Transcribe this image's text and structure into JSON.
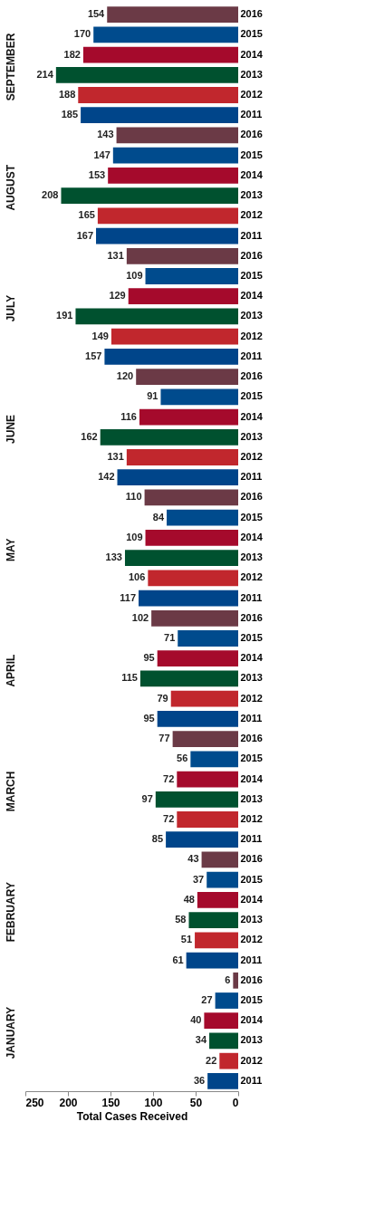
{
  "chart_data": {
    "type": "bar",
    "orientation": "horizontal",
    "xlabel": "Total Cases Received",
    "categories": [
      "2016",
      "2015",
      "2014",
      "2013",
      "2012",
      "2011",
      "2016",
      "2015",
      "2014",
      "2013",
      "2012",
      "2011",
      "2016",
      "2015",
      "2014",
      "2013",
      "2012",
      "2011",
      "2016",
      "2015",
      "2014",
      "2013",
      "2012",
      "2011",
      "2016",
      "2015",
      "2014",
      "2013",
      "2012",
      "2011",
      "2016",
      "2015",
      "2014",
      "2013",
      "2012",
      "2011",
      "2016",
      "2015",
      "2014",
      "2013",
      "2012",
      "2011",
      "2016",
      "2015",
      "2014",
      "2013",
      "2012",
      "2011",
      "2016",
      "2015",
      "2014",
      "2013",
      "2012",
      "2011"
    ],
    "values": [
      154,
      170,
      182,
      214,
      188,
      185,
      143,
      147,
      153,
      208,
      165,
      167,
      131,
      109,
      129,
      191,
      149,
      157,
      120,
      91,
      116,
      162,
      131,
      142,
      110,
      84,
      109,
      133,
      106,
      117,
      102,
      71,
      95,
      115,
      79,
      95,
      77,
      56,
      72,
      97,
      72,
      85,
      43,
      37,
      48,
      58,
      51,
      61,
      6,
      27,
      40,
      34,
      22,
      36
    ],
    "colors": [
      "#6b3a46",
      "#004b8d",
      "#a50a2c",
      "#00512f",
      "#c1272d",
      "#00458a",
      "#6b3a46",
      "#004b8d",
      "#a50a2c",
      "#00512f",
      "#c1272d",
      "#00458a",
      "#6b3a46",
      "#004b8d",
      "#a50a2c",
      "#00512f",
      "#c1272d",
      "#00458a",
      "#6b3a46",
      "#004b8d",
      "#a50a2c",
      "#00512f",
      "#c1272d",
      "#00458a",
      "#6b3a46",
      "#004b8d",
      "#a50a2c",
      "#00512f",
      "#c1272d",
      "#00458a",
      "#6b3a46",
      "#004b8d",
      "#a50a2c",
      "#00512f",
      "#c1272d",
      "#00458a",
      "#6b3a46",
      "#004b8d",
      "#a50a2c",
      "#00512f",
      "#c1272d",
      "#00458a",
      "#6b3a46",
      "#004b8d",
      "#a50a2c",
      "#00512f",
      "#c1272d",
      "#00458a",
      "#6b3a46",
      "#004b8d",
      "#a50a2c",
      "#00512f",
      "#c1272d",
      "#00458a"
    ],
    "xlim": [
      250,
      0
    ],
    "xticks": [
      0,
      50,
      100,
      150,
      200,
      250
    ],
    "data_labels": true,
    "grid": false,
    "annotations": [
      "SEPTEMBER",
      "AUGUST",
      "JULY",
      "JUNE",
      "MAY",
      "APRIL",
      "MARCH",
      "FEBRUARY",
      "JANUARY"
    ]
  }
}
